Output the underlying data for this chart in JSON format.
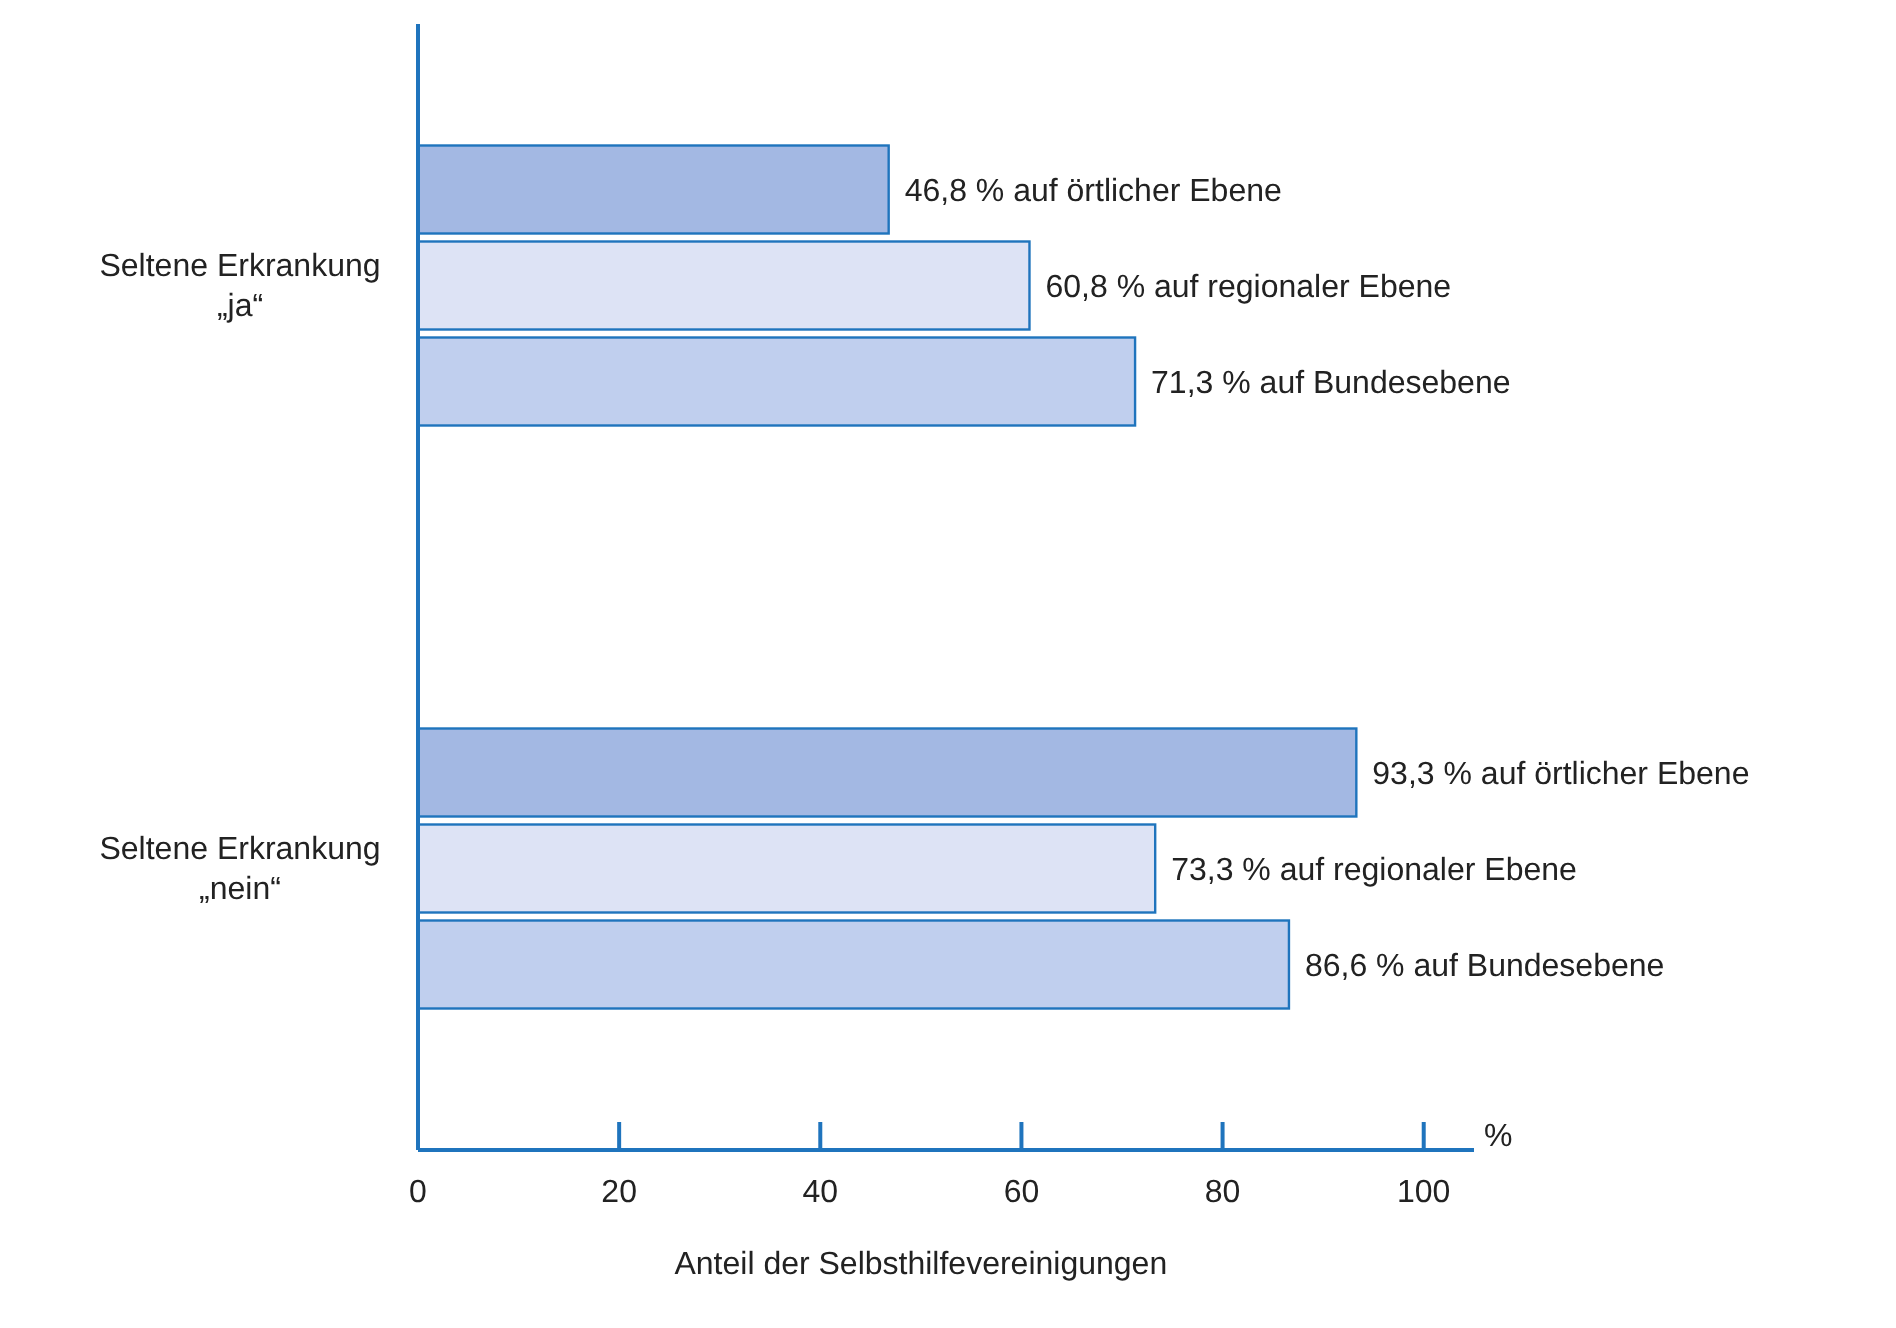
{
  "chart_data": {
    "type": "bar",
    "orientation": "horizontal",
    "xlabel": "Anteil der Selbsthilfevereinigungen",
    "annotations": [
      "%"
    ],
    "categories": [
      "Seltene Erkrankung\n„ja“",
      "Seltene Erkrankung\n„nein“"
    ],
    "series": [
      {
        "color": "#a3b8e3",
        "values": [
          46.8,
          93.3
        ],
        "value_labels": [
          "46,8 % auf örtlicher Ebene",
          "93,3 % auf örtlicher Ebene"
        ]
      },
      {
        "color": "#dde3f5",
        "values": [
          60.8,
          73.3
        ],
        "value_labels": [
          "60,8 % auf regionaler Ebene",
          "73,3 % auf regionaler Ebene"
        ]
      },
      {
        "color": "#c0cfee",
        "values": [
          71.3,
          86.6
        ],
        "value_labels": [
          "71,3 % auf Bundesebene",
          "86,6 % auf Bundesebene"
        ]
      }
    ],
    "xlim": [
      0,
      105
    ],
    "xticks": [
      0,
      20,
      40,
      60,
      80,
      100
    ],
    "grid": false
  }
}
